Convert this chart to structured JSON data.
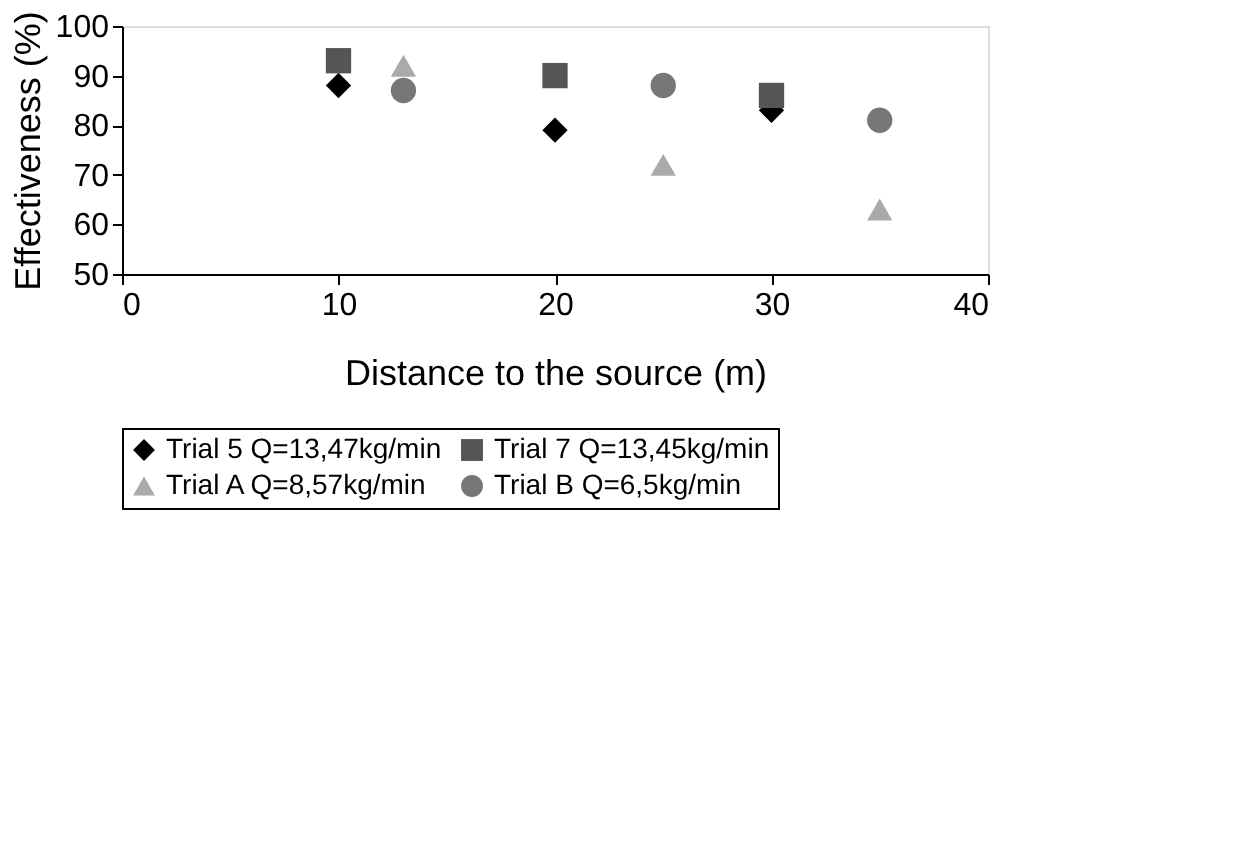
{
  "chart_data": {
    "type": "scatter",
    "xlabel": "Distance to the source (m)",
    "ylabel": "Effectiveness (%)",
    "xlim": [
      0,
      40
    ],
    "xticks": [
      0,
      10,
      20,
      30,
      40
    ],
    "ylim": [
      50,
      100
    ],
    "yticks": [
      50,
      60,
      70,
      80,
      90,
      100
    ],
    "grid": false,
    "legend": "bottom",
    "series": [
      {
        "name": "Trial 5 Q=13,47kg/min",
        "color": "#000000",
        "marker": "diamond",
        "x": [
          10,
          20,
          30
        ],
        "values": [
          88,
          79,
          83
        ]
      },
      {
        "name": "Trial 7 Q=13,45kg/min",
        "color": "#555555",
        "marker": "square",
        "x": [
          10,
          20,
          30
        ],
        "values": [
          93,
          90,
          86
        ]
      },
      {
        "name": "Trial A Q=8,57kg/min",
        "color": "#aaaaaa",
        "marker": "triangle",
        "x": [
          13,
          25,
          35
        ],
        "values": [
          92,
          72,
          63
        ]
      },
      {
        "name": "Trial B Q=6,5kg/min",
        "color": "#777777",
        "marker": "circle",
        "x": [
          13,
          25,
          35
        ],
        "values": [
          87,
          88,
          81
        ]
      }
    ]
  }
}
